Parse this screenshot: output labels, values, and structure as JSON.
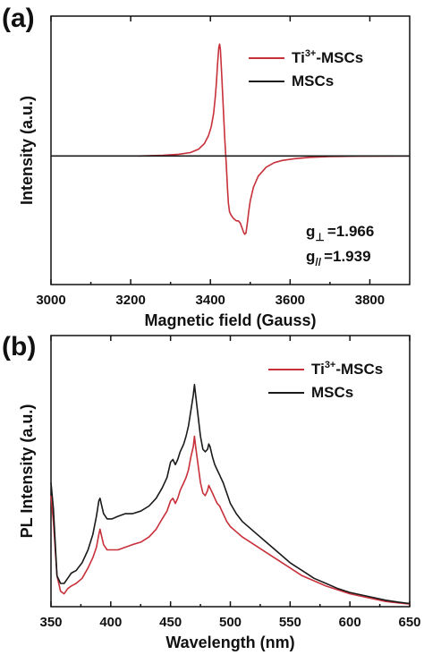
{
  "chart_data": [
    {
      "panel_label": "(a)",
      "type": "line",
      "xlabel": "Magnetic field (Gauss)",
      "ylabel": "Intensity (a.u.)",
      "xlim": [
        3000,
        3900
      ],
      "ylim": [
        -1.15,
        1.25
      ],
      "x_ticks": [
        "3000",
        "3200",
        "3400",
        "3600",
        "3800"
      ],
      "y_ticks_labeled": false,
      "legend_position": "top-right",
      "grid": false,
      "annotations": [
        {
          "prefix": "g",
          "sub": "⊥",
          "value": "=1.966"
        },
        {
          "prefix": "g",
          "sub": "//",
          "value": "=1.939"
        }
      ],
      "series": [
        {
          "name": "Ti",
          "name_sup": "3+",
          "name_suffix": "-MSCs",
          "color": "#c8303a",
          "x": [
            3220,
            3280,
            3320,
            3350,
            3370,
            3385,
            3395,
            3402,
            3408,
            3412,
            3415,
            3418,
            3421,
            3423,
            3425,
            3428,
            3432,
            3436,
            3440,
            3443,
            3445,
            3448,
            3452,
            3458,
            3465,
            3470,
            3475,
            3480,
            3483,
            3486,
            3489,
            3492,
            3496,
            3500,
            3508,
            3520,
            3540,
            3560,
            3580,
            3610,
            3650,
            3700,
            3760,
            3820,
            3900
          ],
          "y": [
            0.0,
            0.005,
            0.015,
            0.03,
            0.06,
            0.11,
            0.18,
            0.26,
            0.38,
            0.52,
            0.65,
            0.82,
            0.97,
            1.0,
            0.95,
            0.75,
            0.45,
            0.15,
            -0.08,
            -0.3,
            -0.42,
            -0.5,
            -0.53,
            -0.56,
            -0.58,
            -0.58,
            -0.6,
            -0.65,
            -0.68,
            -0.7,
            -0.69,
            -0.62,
            -0.5,
            -0.4,
            -0.28,
            -0.18,
            -0.1,
            -0.06,
            -0.04,
            -0.025,
            -0.012,
            -0.006,
            -0.003,
            -0.001,
            0.0
          ]
        },
        {
          "name": "MSCs",
          "color": "#1a1a1a",
          "x": [
            3000,
            3900
          ],
          "y": [
            0.0,
            0.0
          ]
        }
      ]
    },
    {
      "panel_label": "(b)",
      "type": "line",
      "xlabel": "Wavelength (nm)",
      "ylabel": "PL Intensity (a.u.)",
      "xlim": [
        350,
        650
      ],
      "ylim": [
        0,
        1.05
      ],
      "x_ticks": [
        "350",
        "400",
        "450",
        "500",
        "550",
        "600",
        "650"
      ],
      "y_ticks_labeled": false,
      "legend_position": "top-right",
      "grid": false,
      "series": [
        {
          "name": "Ti",
          "name_sup": "3+",
          "name_suffix": "-MSCs",
          "color": "#c8303a",
          "x": [
            350,
            352,
            355,
            358,
            361,
            364,
            367,
            371,
            376,
            381,
            385,
            388,
            390,
            391,
            392,
            394,
            397,
            401,
            406,
            412,
            418,
            425,
            432,
            438,
            443,
            447,
            450,
            452,
            454,
            456,
            458,
            461,
            463,
            465,
            467,
            469,
            470,
            471,
            473,
            475,
            477,
            479,
            481,
            482,
            483,
            485,
            487,
            489,
            491,
            492,
            494,
            497,
            500,
            505,
            510,
            520,
            530,
            540,
            550,
            560,
            570,
            580,
            590,
            600,
            610,
            620,
            630,
            640,
            650
          ],
          "y": [
            0.43,
            0.33,
            0.12,
            0.06,
            0.05,
            0.07,
            0.08,
            0.09,
            0.11,
            0.15,
            0.19,
            0.23,
            0.28,
            0.3,
            0.28,
            0.24,
            0.22,
            0.22,
            0.22,
            0.23,
            0.24,
            0.25,
            0.27,
            0.3,
            0.34,
            0.37,
            0.41,
            0.42,
            0.4,
            0.42,
            0.45,
            0.48,
            0.5,
            0.53,
            0.58,
            0.62,
            0.66,
            0.62,
            0.55,
            0.48,
            0.44,
            0.43,
            0.45,
            0.47,
            0.46,
            0.44,
            0.42,
            0.4,
            0.39,
            0.38,
            0.36,
            0.33,
            0.31,
            0.29,
            0.27,
            0.24,
            0.21,
            0.18,
            0.15,
            0.12,
            0.1,
            0.08,
            0.065,
            0.05,
            0.04,
            0.03,
            0.02,
            0.015,
            0.01
          ]
        },
        {
          "name": "MSCs",
          "color": "#1a1a1a",
          "x": [
            350,
            352,
            355,
            358,
            361,
            364,
            367,
            371,
            376,
            381,
            385,
            388,
            390,
            391,
            392,
            394,
            397,
            401,
            406,
            412,
            418,
            425,
            432,
            438,
            443,
            447,
            450,
            452,
            454,
            456,
            458,
            461,
            463,
            465,
            467,
            469,
            470,
            471,
            473,
            475,
            477,
            479,
            481,
            482,
            483,
            485,
            487,
            489,
            491,
            492,
            494,
            497,
            500,
            505,
            510,
            520,
            530,
            540,
            550,
            560,
            570,
            580,
            590,
            600,
            610,
            620,
            630,
            640,
            650
          ],
          "y": [
            0.48,
            0.38,
            0.12,
            0.09,
            0.09,
            0.11,
            0.13,
            0.14,
            0.17,
            0.22,
            0.28,
            0.35,
            0.41,
            0.42,
            0.4,
            0.36,
            0.34,
            0.34,
            0.35,
            0.36,
            0.36,
            0.37,
            0.39,
            0.42,
            0.46,
            0.5,
            0.56,
            0.57,
            0.55,
            0.57,
            0.6,
            0.63,
            0.66,
            0.7,
            0.76,
            0.82,
            0.86,
            0.82,
            0.74,
            0.66,
            0.61,
            0.6,
            0.61,
            0.63,
            0.62,
            0.58,
            0.55,
            0.53,
            0.51,
            0.5,
            0.48,
            0.44,
            0.4,
            0.36,
            0.33,
            0.29,
            0.25,
            0.21,
            0.17,
            0.14,
            0.11,
            0.09,
            0.07,
            0.055,
            0.045,
            0.035,
            0.025,
            0.018,
            0.012
          ]
        }
      ]
    }
  ]
}
